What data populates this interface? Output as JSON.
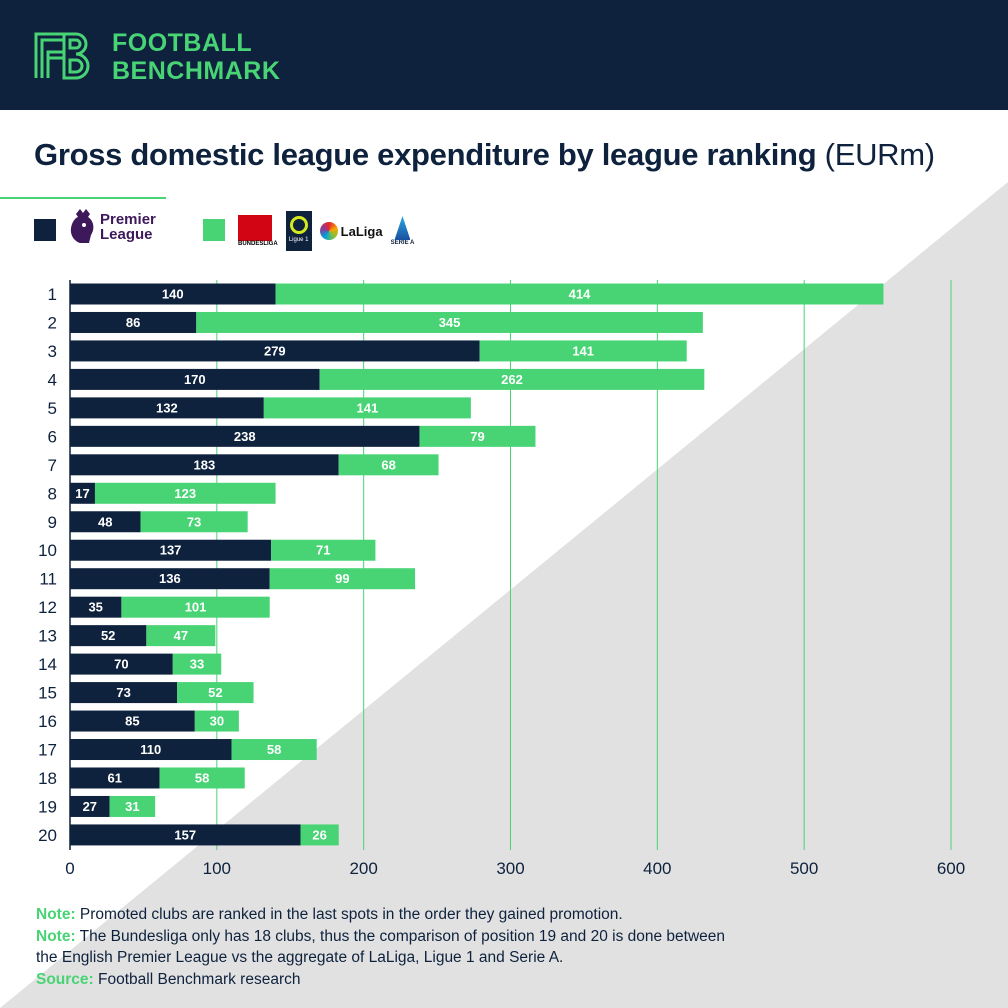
{
  "brand": {
    "line1": "FOOTBALL",
    "line2": "BENCHMARK",
    "color": "#48d475",
    "bg": "#0e223d"
  },
  "title": {
    "main": "Gross domestic league expenditure by league ranking",
    "unit": "(EURm)"
  },
  "legend": {
    "premier_league": "Premier League",
    "others": [
      "Bundesliga",
      "Ligue 1",
      "LaLiga",
      "Serie A"
    ]
  },
  "chart_data": {
    "type": "bar",
    "orientation": "horizontal",
    "stacked": true,
    "categories": [
      "1",
      "2",
      "3",
      "4",
      "5",
      "6",
      "7",
      "8",
      "9",
      "10",
      "11",
      "12",
      "13",
      "14",
      "15",
      "16",
      "17",
      "18",
      "19",
      "20"
    ],
    "series": [
      {
        "name": "Premier League",
        "color": "#0e223d",
        "values": [
          140,
          86,
          279,
          170,
          132,
          238,
          183,
          17,
          48,
          137,
          136,
          35,
          52,
          70,
          73,
          85,
          110,
          61,
          27,
          157
        ]
      },
      {
        "name": "Bundesliga, Ligue 1, LaLiga, Serie A",
        "color": "#48d475",
        "values": [
          414,
          345,
          141,
          262,
          141,
          79,
          68,
          123,
          73,
          71,
          99,
          101,
          47,
          33,
          52,
          30,
          58,
          58,
          31,
          26
        ]
      }
    ],
    "xlim": [
      0,
      600
    ],
    "xticks": [
      "0",
      "100",
      "200",
      "300",
      "400",
      "500",
      "600"
    ],
    "grid": "vertical",
    "legend": "top-left"
  },
  "notes": [
    {
      "label": "Note:",
      "text": " Promoted clubs are ranked in the last spots in the order they gained promotion."
    },
    {
      "label": "Note:",
      "text": " The Bundesliga only has 18 clubs, thus the comparison of position 19 and 20 is done between"
    },
    {
      "label": "",
      "text": "the English Premier League vs the aggregate of LaLiga, Ligue 1 and Serie A."
    },
    {
      "label": "Source:",
      "text": " Football Benchmark research"
    }
  ]
}
